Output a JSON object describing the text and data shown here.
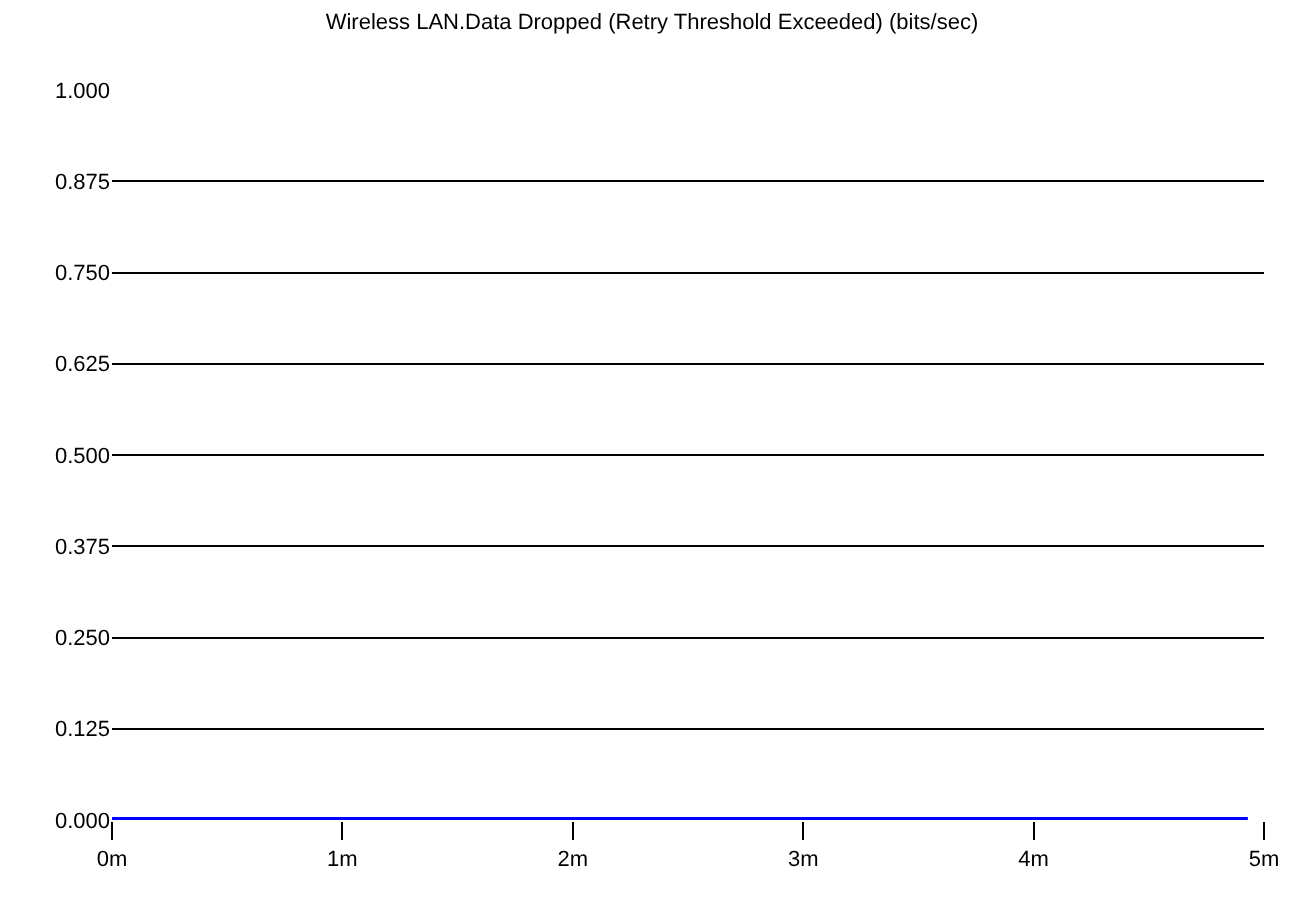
{
  "chart_data": {
    "type": "line",
    "title": "Wireless LAN.Data Dropped (Retry Threshold Exceeded) (bits/sec)",
    "x": [
      0,
      4.93
    ],
    "series": [
      {
        "color": "#0000ff",
        "values": [
          0,
          0
        ]
      }
    ],
    "xlim": [
      0,
      5
    ],
    "xticks": [
      {
        "value": 0,
        "label": "0m"
      },
      {
        "value": 1,
        "label": "1m"
      },
      {
        "value": 2,
        "label": "2m"
      },
      {
        "value": 3,
        "label": "3m"
      },
      {
        "value": 4,
        "label": "4m"
      },
      {
        "value": 5,
        "label": "5m"
      }
    ],
    "ylim": [
      0,
      1
    ],
    "yticks": [
      {
        "value": 0,
        "label": "0.000"
      },
      {
        "value": 0.125,
        "label": "0.125"
      },
      {
        "value": 0.25,
        "label": "0.250"
      },
      {
        "value": 0.375,
        "label": "0.375"
      },
      {
        "value": 0.5,
        "label": "0.500"
      },
      {
        "value": 0.625,
        "label": "0.625"
      },
      {
        "value": 0.75,
        "label": "0.750"
      },
      {
        "value": 0.875,
        "label": "0.875"
      },
      {
        "value": 1,
        "label": "1.000"
      }
    ],
    "grid": "y",
    "marker": "none",
    "line_style": "solid"
  }
}
